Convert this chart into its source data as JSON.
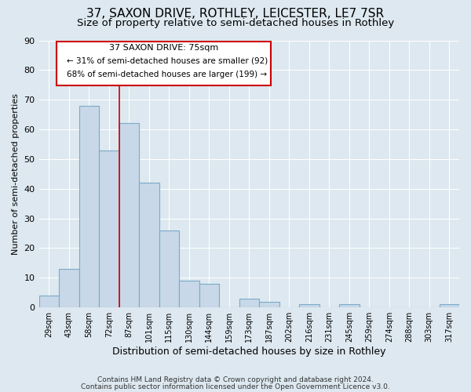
{
  "title": "37, SAXON DRIVE, ROTHLEY, LEICESTER, LE7 7SR",
  "subtitle": "Size of property relative to semi-detached houses in Rothley",
  "xlabel": "Distribution of semi-detached houses by size in Rothley",
  "ylabel": "Number of semi-detached properties",
  "footer_line1": "Contains HM Land Registry data © Crown copyright and database right 2024.",
  "footer_line2": "Contains public sector information licensed under the Open Government Licence v3.0.",
  "bin_labels": [
    "29sqm",
    "43sqm",
    "58sqm",
    "72sqm",
    "87sqm",
    "101sqm",
    "115sqm",
    "130sqm",
    "144sqm",
    "159sqm",
    "173sqm",
    "187sqm",
    "202sqm",
    "216sqm",
    "231sqm",
    "245sqm",
    "259sqm",
    "274sqm",
    "288sqm",
    "303sqm",
    "317sqm"
  ],
  "bar_values": [
    4,
    13,
    68,
    53,
    62,
    42,
    26,
    9,
    8,
    0,
    3,
    2,
    0,
    1,
    0,
    1,
    0,
    0,
    0,
    0,
    1
  ],
  "bar_color": "#c8d8e8",
  "bar_edge_color": "#7aaac8",
  "annotation_title": "37 SAXON DRIVE: 75sqm",
  "annotation_line1": "← 31% of semi-detached houses are smaller (92)",
  "annotation_line2": "68% of semi-detached houses are larger (199) →",
  "annotation_box_edge": "#cc0000",
  "annotation_line_color": "#cc0000",
  "ylim": [
    0,
    90
  ],
  "yticks": [
    0,
    10,
    20,
    30,
    40,
    50,
    60,
    70,
    80,
    90
  ],
  "background_color": "#dde8f0",
  "plot_background": "#dde8f0",
  "grid_color": "#ffffff",
  "title_fontsize": 11,
  "subtitle_fontsize": 9.5
}
